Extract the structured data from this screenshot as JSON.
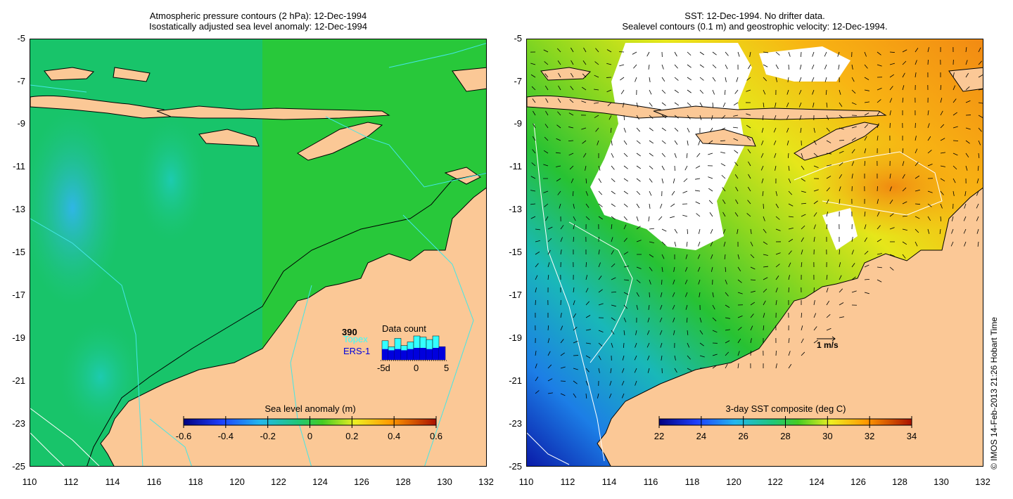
{
  "left_panel": {
    "title_line1": "Atmospheric pressure contours (2 hPa): 12-Dec-1994",
    "title_line2": "Isostatically adjusted sea level anomaly: 12-Dec-1994",
    "colorbar_title": "Sea level anomaly (m)",
    "colorbar_ticks": [
      "-0.6",
      "-0.4",
      "-0.2",
      "0",
      "0.2",
      "0.4",
      "0.6"
    ],
    "data_count": {
      "title": "Data count",
      "max_label": "390",
      "series": [
        "Topex",
        "ERS-1"
      ],
      "axis_labels": [
        "-5d",
        "0",
        "5"
      ],
      "colors": {
        "topex": "#33ffff",
        "ers1": "#0000dd"
      }
    }
  },
  "right_panel": {
    "title_line1": "SST: 12-Dec-1994. No drifter data.",
    "title_line2": "Sealevel contours (0.1 m) and geostrophic velocity: 12-Dec-1994.",
    "colorbar_title": "3-day SST composite (deg C)",
    "colorbar_ticks": [
      "22",
      "24",
      "26",
      "28",
      "30",
      "32",
      "34"
    ],
    "velocity_scale_label": "1 m/s"
  },
  "axes": {
    "y_ticks": [
      "-5",
      "-7",
      "-9",
      "-11",
      "-13",
      "-15",
      "-17",
      "-19",
      "-21",
      "-23",
      "-25"
    ],
    "x_ticks": [
      "110",
      "112",
      "114",
      "116",
      "118",
      "120",
      "122",
      "124",
      "126",
      "128",
      "130",
      "132"
    ]
  },
  "copyright": "© IMOS 14-Feb-2013 21:26 Hobart Time",
  "colors": {
    "land": "#fbc896",
    "ocean_green": "#1fc23a",
    "cloud": "#ffffff"
  }
}
